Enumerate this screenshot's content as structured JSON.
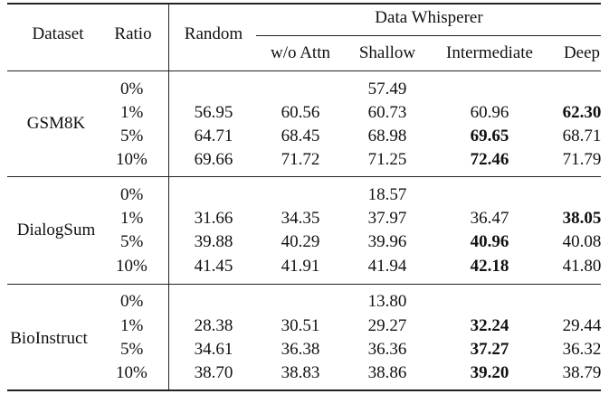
{
  "header": {
    "dataset": "Dataset",
    "ratio": "Ratio",
    "random": "Random",
    "group": "Data Whisperer",
    "sub": [
      "w/o Attn",
      "Shallow",
      "Intermediate",
      "Deep"
    ]
  },
  "groups": [
    {
      "name": "GSM8K",
      "baseline": "57.49",
      "rows": [
        {
          "ratio": "0%"
        },
        {
          "ratio": "1%",
          "random": "56.95",
          "vals": [
            "60.56",
            "60.73",
            "60.96",
            "62.30"
          ],
          "bold": 3
        },
        {
          "ratio": "5%",
          "random": "64.71",
          "vals": [
            "68.45",
            "68.98",
            "69.65",
            "68.71"
          ],
          "bold": 2
        },
        {
          "ratio": "10%",
          "random": "69.66",
          "vals": [
            "71.72",
            "71.25",
            "72.46",
            "71.79"
          ],
          "bold": 2
        }
      ]
    },
    {
      "name": "DialogSum",
      "baseline": "18.57",
      "rows": [
        {
          "ratio": "0%"
        },
        {
          "ratio": "1%",
          "random": "31.66",
          "vals": [
            "34.35",
            "37.97",
            "36.47",
            "38.05"
          ],
          "bold": 3
        },
        {
          "ratio": "5%",
          "random": "39.88",
          "vals": [
            "40.29",
            "39.96",
            "40.96",
            "40.08"
          ],
          "bold": 2
        },
        {
          "ratio": "10%",
          "random": "41.45",
          "vals": [
            "41.91",
            "41.94",
            "42.18",
            "41.80"
          ],
          "bold": 2
        }
      ]
    },
    {
      "name": "BioInstruct",
      "baseline": "13.80",
      "rows": [
        {
          "ratio": "0%"
        },
        {
          "ratio": "1%",
          "random": "28.38",
          "vals": [
            "30.51",
            "29.27",
            "32.24",
            "29.44"
          ],
          "bold": 2
        },
        {
          "ratio": "5%",
          "random": "34.61",
          "vals": [
            "36.38",
            "36.36",
            "37.27",
            "36.32"
          ],
          "bold": 2
        },
        {
          "ratio": "10%",
          "random": "38.70",
          "vals": [
            "38.83",
            "38.86",
            "39.20",
            "38.79"
          ],
          "bold": 2
        }
      ]
    }
  ]
}
